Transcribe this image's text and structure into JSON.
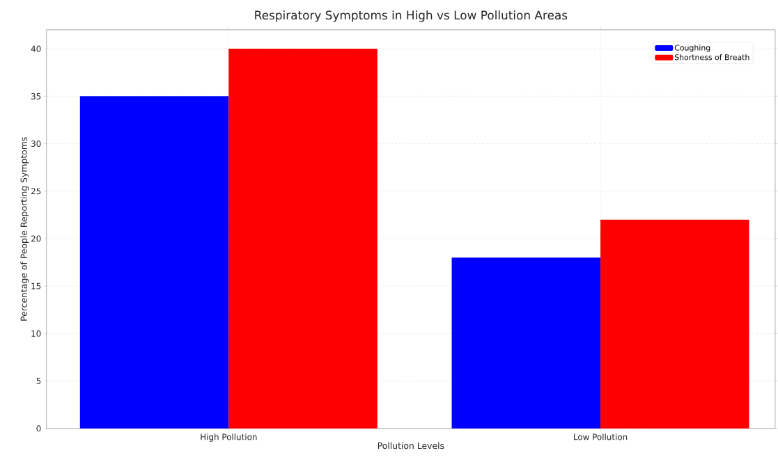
{
  "chart_data": {
    "type": "bar",
    "title": "Respiratory Symptoms in High vs Low Pollution Areas",
    "xlabel": "Pollution Levels",
    "ylabel": "Percentage of People Reporting Symptoms",
    "categories": [
      "High Pollution",
      "Low Pollution"
    ],
    "series": [
      {
        "name": "Coughing",
        "color": "#0000ff",
        "values": [
          35,
          18
        ]
      },
      {
        "name": "Shortness of Breath",
        "color": "#ff0000",
        "values": [
          40,
          22
        ]
      }
    ],
    "ylim": [
      0,
      42
    ],
    "yticks": [
      0,
      5,
      10,
      15,
      20,
      25,
      30,
      35,
      40
    ],
    "grid": true,
    "legend": "top right"
  }
}
